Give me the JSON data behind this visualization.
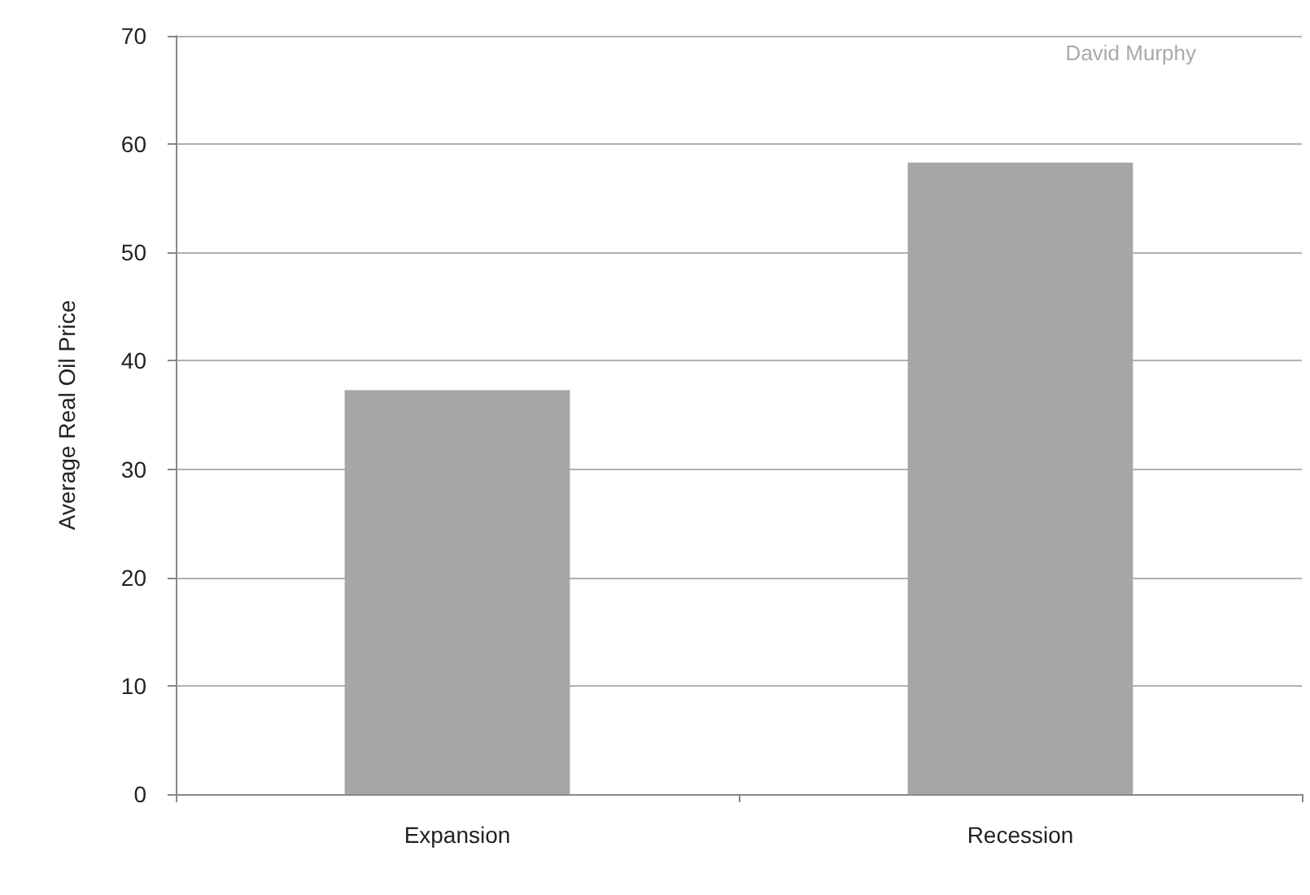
{
  "chart_data": {
    "type": "bar",
    "ylabel": "Average Real Oil Price",
    "categories": [
      "Expansion",
      "Recession"
    ],
    "values": [
      37.3,
      58.3
    ],
    "color": "#a6a6a6",
    "ylim": [
      0,
      70
    ],
    "yticks": [
      0,
      10,
      20,
      30,
      40,
      50,
      60,
      70
    ],
    "grid": "y",
    "annotations": [
      "David Murphy"
    ]
  }
}
